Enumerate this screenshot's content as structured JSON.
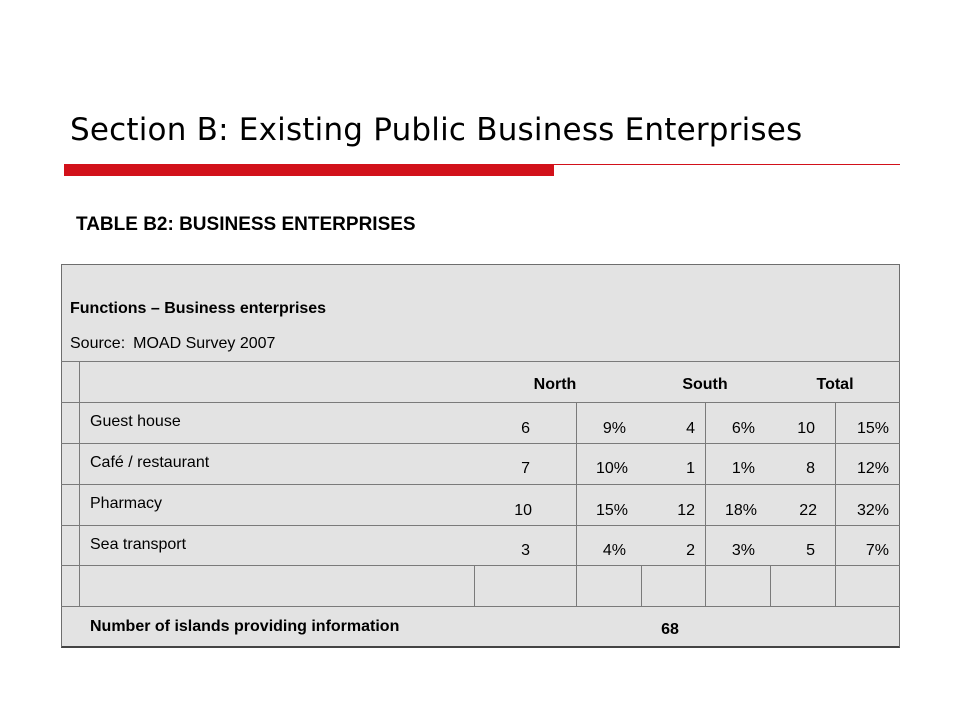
{
  "title": "Section B: Existing Public Business Enterprises",
  "table_caption": "TABLE B2: BUSINESS ENTERPRISES",
  "info": {
    "heading": "Functions – Business enterprises",
    "source_label": "Source:",
    "source_value": "MOAD Survey 2007"
  },
  "columns": [
    "North",
    "South",
    "Total"
  ],
  "rows": [
    {
      "label": "Guest house",
      "north_n": "6",
      "north_pct": "9%",
      "south_n": "4",
      "south_pct": "6%",
      "total_n": "10",
      "total_pct": "15%"
    },
    {
      "label": "Café / restaurant",
      "north_n": "7",
      "north_pct": "10%",
      "south_n": "1",
      "south_pct": "1%",
      "total_n": "8",
      "total_pct": "12%"
    },
    {
      "label": "Pharmacy",
      "north_n": "10",
      "north_pct": "15%",
      "south_n": "12",
      "south_pct": "18%",
      "total_n": "22",
      "total_pct": "32%"
    },
    {
      "label": "Sea transport",
      "north_n": "3",
      "north_pct": "4%",
      "south_n": "2",
      "south_pct": "3%",
      "total_n": "5",
      "total_pct": "7%"
    }
  ],
  "footer": {
    "label": "Number of islands providing information",
    "value": "68"
  },
  "colors": {
    "accent": "#d2111a",
    "table_background": "#e3e3e3",
    "grid_line": "#7a7a7a"
  }
}
